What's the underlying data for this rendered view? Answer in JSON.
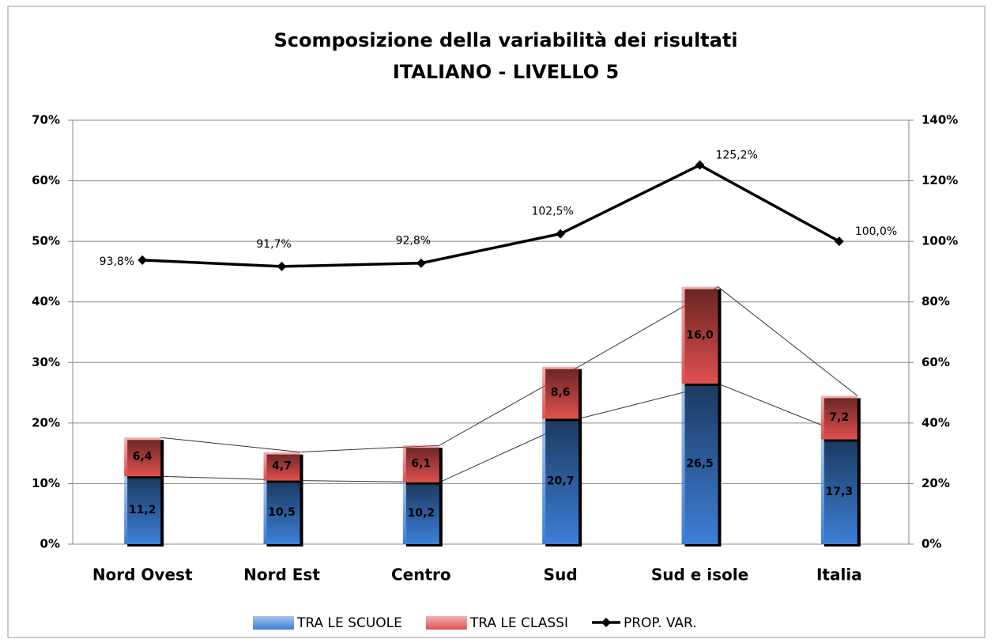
{
  "chart_data": {
    "type": "stacked-bar-line",
    "title": "Scomposizione della variabilità dei risultati",
    "subtitle": "ITALIANO - LIVELLO 5",
    "categories": [
      "Nord Ovest",
      "Nord Est",
      "Centro",
      "Sud",
      "Sud e isole",
      "Italia"
    ],
    "series": [
      {
        "name": "TRA LE SCUOLE",
        "color": "#3d7fd6",
        "values": [
          11.2,
          10.5,
          10.2,
          20.7,
          26.5,
          17.3
        ],
        "value_labels": [
          "11,2",
          "10,5",
          "10,2",
          "20,7",
          "26,5",
          "17,3"
        ]
      },
      {
        "name": "TRA LE CLASSI",
        "color": "#e0504f",
        "values": [
          6.4,
          4.7,
          6.1,
          8.6,
          16.0,
          7.2
        ],
        "value_labels": [
          "6,4",
          "4,7",
          "6,1",
          "8,6",
          "16,0",
          "7,2"
        ]
      },
      {
        "name": "PROP. VAR.",
        "color": "#000000",
        "axis": "y2",
        "values": [
          93.8,
          91.7,
          92.8,
          102.5,
          125.2,
          100.0
        ],
        "value_labels": [
          "93,8%",
          "91,7%",
          "92,8%",
          "102,5%",
          "125,2%",
          "100,0%"
        ]
      }
    ],
    "ylim": [
      0,
      70
    ],
    "yticks": [
      {
        "value": 0,
        "label": "0%"
      },
      {
        "value": 10,
        "label": "10%"
      },
      {
        "value": 20,
        "label": "20%"
      },
      {
        "value": 30,
        "label": "30%"
      },
      {
        "value": 40,
        "label": "40%"
      },
      {
        "value": 50,
        "label": "50%"
      },
      {
        "value": 60,
        "label": "60%"
      },
      {
        "value": 70,
        "label": "70%"
      }
    ],
    "y2lim": [
      0,
      140
    ],
    "y2ticks": [
      {
        "value": 0,
        "label": "0%"
      },
      {
        "value": 20,
        "label": "20%"
      },
      {
        "value": 40,
        "label": "40%"
      },
      {
        "value": 60,
        "label": "60%"
      },
      {
        "value": 80,
        "label": "80%"
      },
      {
        "value": 100,
        "label": "100%"
      },
      {
        "value": 120,
        "label": "120%"
      },
      {
        "value": 140,
        "label": "140%"
      }
    ],
    "grid": true
  }
}
